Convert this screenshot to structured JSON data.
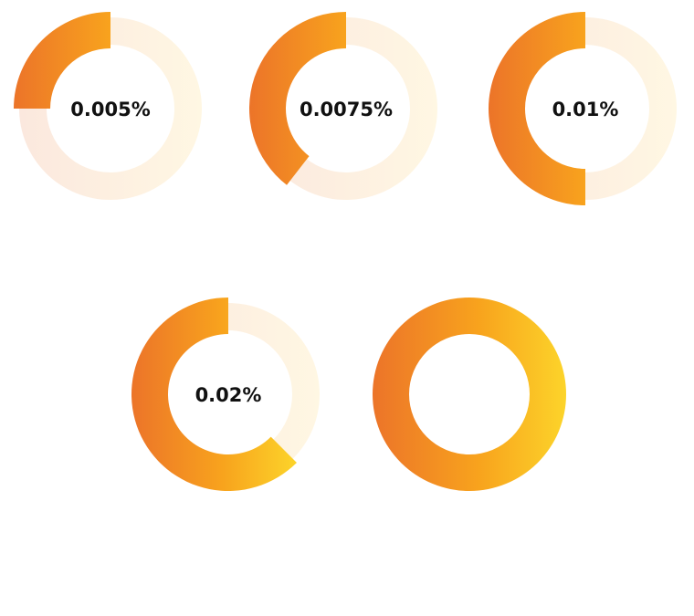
{
  "colors": {
    "accent_start": "#ec7429",
    "accent_end": "#f8a31d",
    "accent_end_full": "#fcd42a",
    "track_start": "#fbe8de",
    "track_end": "#fff7e3"
  },
  "chart_data": {
    "type": "pie",
    "variant": "donut",
    "grid": false,
    "legend": "none",
    "series": [
      {
        "label": "0.005%",
        "fraction": 0.25
      },
      {
        "label": "0.0075%",
        "fraction": 0.395
      },
      {
        "label": "0.01%",
        "fraction": 0.5
      },
      {
        "label": "0.02%",
        "fraction": 0.625
      },
      {
        "label": "",
        "fraction": 1.0
      }
    ]
  }
}
